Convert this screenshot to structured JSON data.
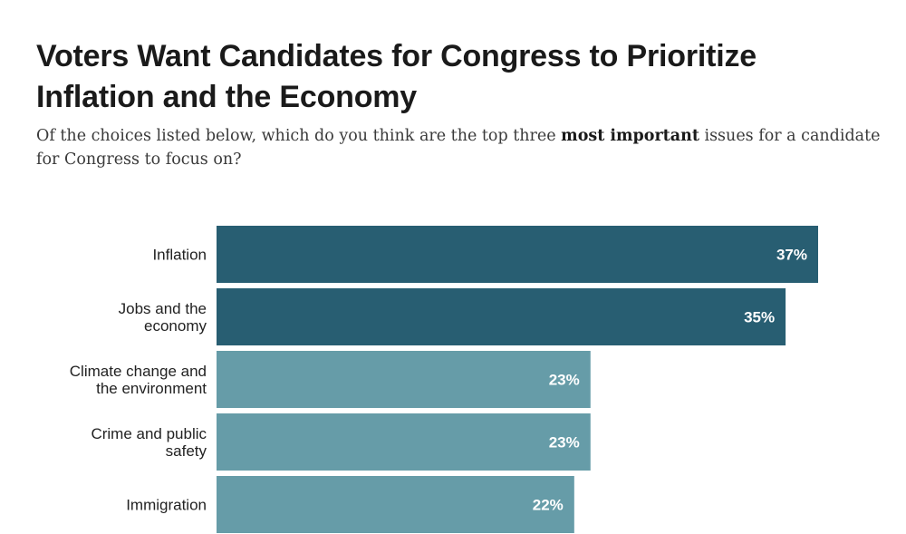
{
  "chart_data": {
    "type": "bar",
    "orientation": "horizontal",
    "title": "Voters Want Candidates for Congress to Prioritize Inflation and the Economy",
    "subtitle": {
      "before": "Of the choices listed below, which do you think are the top three ",
      "emphasis": "most important",
      "after": " issues for a candidate for Congress to focus on?"
    },
    "categories": [
      [
        "Inflation"
      ],
      [
        "Jobs and the",
        "economy"
      ],
      [
        "Climate change and",
        "the environment"
      ],
      [
        "Crime and public",
        "safety"
      ],
      [
        "Immigration"
      ]
    ],
    "values": [
      37,
      35,
      23,
      23,
      22
    ],
    "value_labels": [
      "37%",
      "35%",
      "23%",
      "23%",
      "22%"
    ],
    "colors": [
      "#285e72",
      "#285e72",
      "#669ca8",
      "#669ca8",
      "#669ca8"
    ],
    "xlim": [
      0,
      37
    ],
    "grid": false,
    "legend": "none"
  }
}
